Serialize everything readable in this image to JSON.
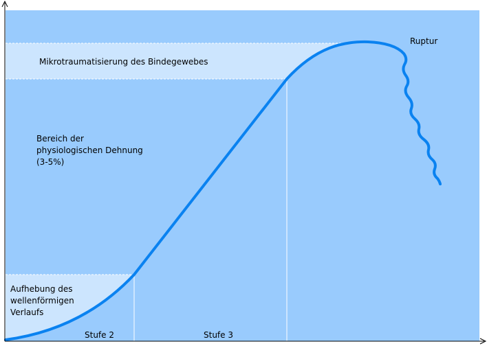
{
  "zones": {
    "microtrauma": "Mikrotraumatisierung des Bindegewebes",
    "physiological": [
      "Bereich der",
      "physiologischen Dehnung",
      "(3-5%)"
    ],
    "waviness": [
      "Aufhebung des",
      "wellenförmigen",
      "Verlaufs"
    ]
  },
  "stages": [
    "Stufe 2",
    "Stufe 3"
  ],
  "rupture": "Ruptur"
}
